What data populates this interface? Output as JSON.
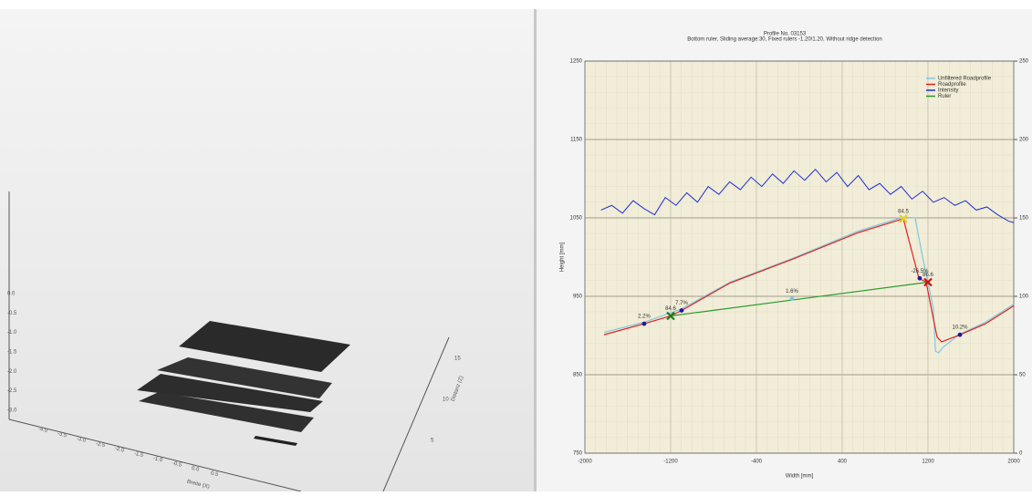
{
  "view3d": {
    "vertical_ticks": [
      "0.0",
      "-0.5",
      "-1.0",
      "-1.5",
      "-2.0",
      "-2.5",
      "-3.0"
    ],
    "bottom_ticks": [
      "-4.0",
      "-3.5",
      "-3.0",
      "-2.5",
      "-2.0",
      "-1.5",
      "-1.0",
      "-0.5",
      "0.0",
      "0.5"
    ],
    "depth_ticks": [
      "15",
      "10",
      "5"
    ],
    "depth_title": "Distanz (Z)",
    "bottom_title": "Breite (X)"
  },
  "chart_data": {
    "type": "line",
    "title": "Profile No. 03153",
    "subtitle": "Bottom ruler, Sliding average:30, Fixed rulers -1.20/1.20, Without ridge detection",
    "x_label": "Width [mm]",
    "y_label": "Height [mm]",
    "xlim": [
      -2000,
      2000
    ],
    "xticks": [
      -2000,
      -1200,
      -400,
      400,
      1200,
      2000
    ],
    "ylim": [
      750,
      1250
    ],
    "yticks": [
      750,
      850,
      950,
      1050,
      1150,
      1250
    ],
    "y2lim": [
      0,
      250
    ],
    "y2ticks": [
      0,
      50,
      100,
      150,
      200,
      250
    ],
    "grid": true,
    "legend": "top-right",
    "series": [
      {
        "name": "Unfiltered Roadprofile",
        "color": "#7fc8e0",
        "x": [
          -1821,
          -1447,
          -1098,
          -647,
          -51,
          545,
          970,
          1080,
          1150,
          1250,
          1270,
          1300,
          1340,
          1500,
          1736,
          2000
        ],
        "values": [
          904,
          917,
          934,
          968,
          999,
          1033,
          1051,
          1050,
          1000,
          935,
          880,
          878,
          885,
          902,
          917,
          940
        ]
      },
      {
        "name": "Roadprofile",
        "color": "#e02020",
        "x": [
          -1821,
          -1447,
          -1200,
          -1098,
          -647,
          -51,
          545,
          970,
          1115,
          1183,
          1242,
          1285,
          1327,
          1498,
          1736,
          2000
        ],
        "values": [
          901,
          915,
          925,
          932,
          967,
          998,
          1031,
          1049,
          973,
          968,
          927,
          898,
          892,
          901,
          915,
          938
        ]
      },
      {
        "name": "Intensity",
        "color": "#1f2fd0",
        "axis": "y2",
        "x": [
          -1850,
          -1750,
          -1650,
          -1550,
          -1450,
          -1350,
          -1250,
          -1150,
          -1050,
          -950,
          -850,
          -750,
          -650,
          -550,
          -450,
          -350,
          -250,
          -150,
          -50,
          50,
          150,
          250,
          350,
          450,
          550,
          650,
          750,
          850,
          950,
          1050,
          1150,
          1250,
          1350,
          1450,
          1550,
          1650,
          1750,
          1850,
          1950,
          2000
        ],
        "values": [
          155,
          158,
          153,
          161,
          156,
          152,
          163,
          158,
          166,
          160,
          170,
          165,
          173,
          168,
          176,
          170,
          178,
          172,
          180,
          174,
          181,
          173,
          179,
          170,
          177,
          168,
          172,
          165,
          170,
          162,
          167,
          160,
          163,
          158,
          161,
          155,
          157,
          152,
          148,
          147
        ]
      },
      {
        "name": "Ruler",
        "color": "#2a9a2a",
        "x": [
          -1200,
          1200
        ],
        "values": [
          925,
          968
        ]
      }
    ],
    "markers": [
      {
        "x": -1447,
        "y": 915,
        "label": "2.2%",
        "color": "#1a1aa0",
        "shape": "dot"
      },
      {
        "x": -1098,
        "y": 932,
        "label": "7.7%",
        "color": "#1a1aa0",
        "shape": "dot"
      },
      {
        "x": -1200,
        "y": 925,
        "label": "84.6",
        "color": "#1f7a1f",
        "shape": "cross"
      },
      {
        "x": -68,
        "y": 947,
        "label": "1.6%",
        "color": "#7fc8e0",
        "shape": "dot"
      },
      {
        "x": 970,
        "y": 1049,
        "label": "84.5",
        "color": "#e8d020",
        "shape": "cross"
      },
      {
        "x": 1123,
        "y": 973,
        "label": "-26.5%",
        "color": "#1a1aa0",
        "shape": "dot"
      },
      {
        "x": 1200,
        "y": 968,
        "label": "86.6",
        "color": "#d01010",
        "shape": "cross"
      },
      {
        "x": 1498,
        "y": 901,
        "label": "10.2%",
        "color": "#1a1aa0",
        "shape": "dot"
      }
    ]
  }
}
